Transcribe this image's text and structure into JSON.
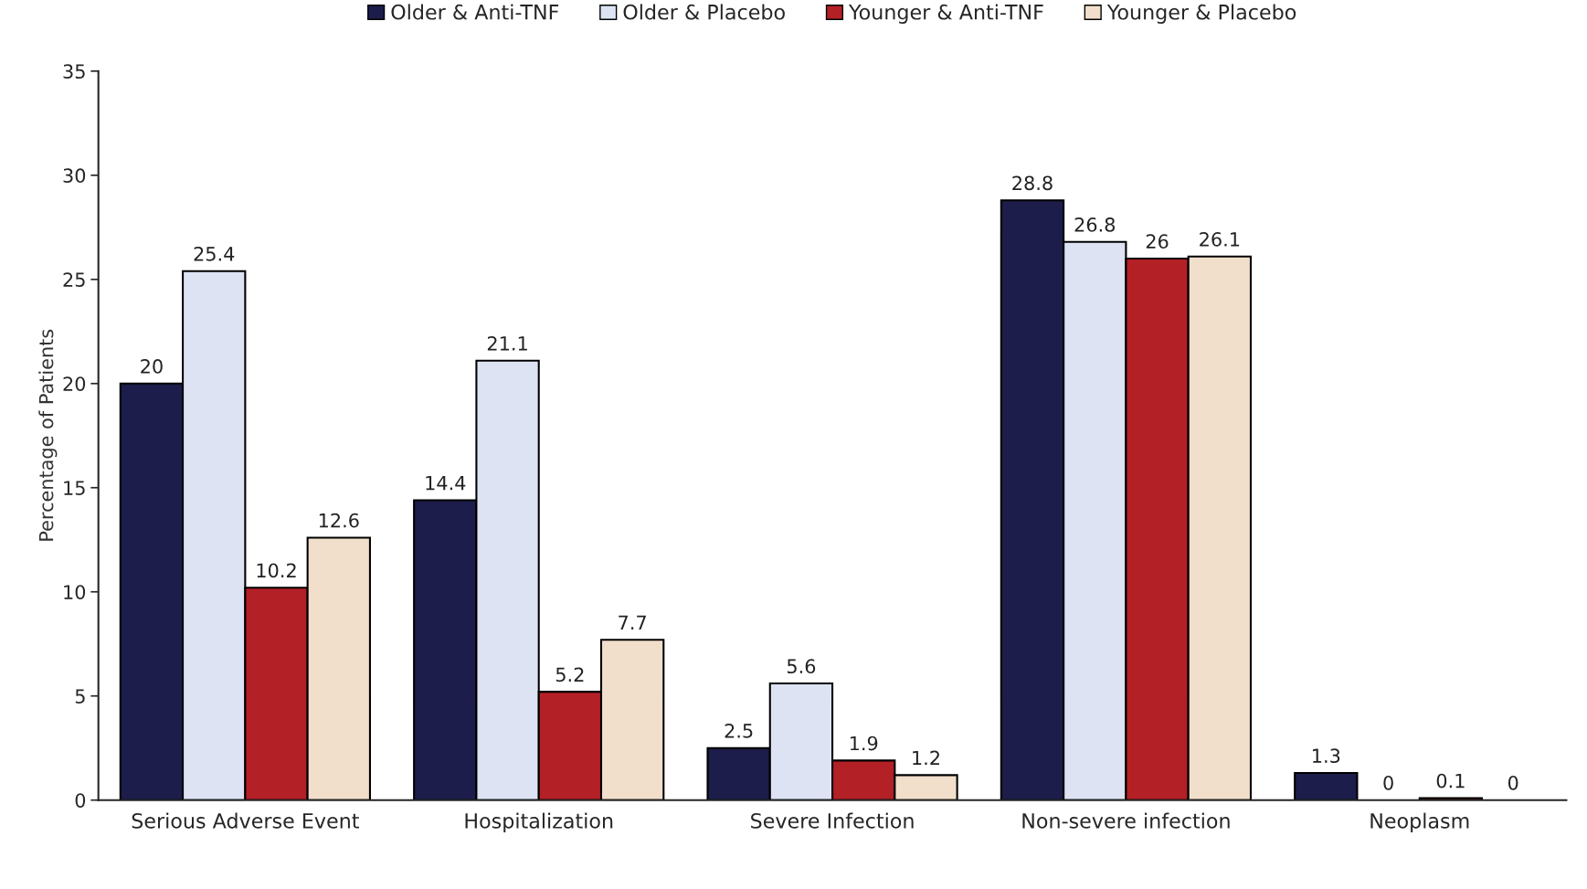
{
  "chart_data": {
    "type": "bar",
    "ylabel": "Percentage of Patients",
    "categories": [
      "Serious Adverse Event",
      "Hospitalization",
      "Severe Infection",
      "Non-severe infection",
      "Neoplasm"
    ],
    "series": [
      {
        "name": "Older & Anti-TNF",
        "color": "#1c1d4a",
        "values": [
          20,
          14.4,
          2.5,
          28.8,
          1.3
        ]
      },
      {
        "name": "Older & Placebo",
        "color": "#dde3f3",
        "values": [
          25.4,
          21.1,
          5.6,
          26.8,
          0
        ]
      },
      {
        "name": "Younger & Anti-TNF",
        "color": "#b32026",
        "values": [
          10.2,
          5.2,
          1.9,
          26,
          0.1
        ]
      },
      {
        "name": "Younger & Placebo",
        "color": "#f1dfcc",
        "values": [
          12.6,
          7.7,
          1.2,
          26.1,
          0
        ]
      }
    ],
    "ylim": [
      0,
      35
    ],
    "yticks": [
      0,
      5,
      10,
      15,
      20,
      25,
      30,
      35
    ],
    "grid": false,
    "legend": "top",
    "data_labels": true
  }
}
